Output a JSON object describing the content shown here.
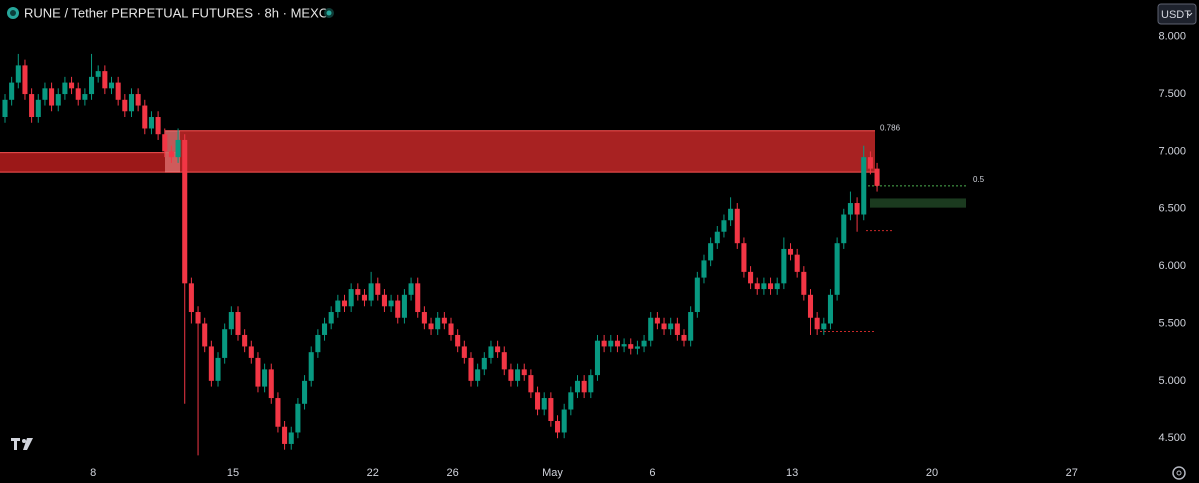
{
  "chart_data": {
    "type": "candlestick",
    "title": "RUNE / Tether PERPETUAL FUTURES · 8h · MEXC",
    "currency": "USDT",
    "up_color": "#089981",
    "down_color": "#f23645",
    "grid": false,
    "xlim": [
      -0.75,
      172
    ],
    "ylim": [
      4.31,
      8.32
    ],
    "yticks": [
      {
        "value": 8,
        "label": "8.000"
      },
      {
        "value": 7.5,
        "label": "7.500"
      },
      {
        "value": 7,
        "label": "7.000"
      },
      {
        "value": 6.5,
        "label": "6.500"
      },
      {
        "value": 6,
        "label": "6.000"
      },
      {
        "value": 5.5,
        "label": "5.500"
      },
      {
        "value": 5,
        "label": "5.000"
      },
      {
        "value": 4.5,
        "label": "4.500"
      }
    ],
    "xticks": [
      {
        "value": 13.25,
        "label": "8"
      },
      {
        "value": 34.25,
        "label": "15"
      },
      {
        "value": 55.25,
        "label": "22"
      },
      {
        "value": 67.25,
        "label": "26"
      },
      {
        "value": 82.25,
        "label": "May"
      },
      {
        "value": 97.25,
        "label": "6"
      },
      {
        "value": 118.25,
        "label": "13"
      },
      {
        "value": 139.25,
        "label": "20"
      },
      {
        "value": 160.25,
        "label": "27"
      }
    ],
    "open": [
      7.3,
      7.45,
      7.6,
      7.75,
      7.5,
      7.3,
      7.45,
      7.55,
      7.4,
      7.5,
      7.6,
      7.55,
      7.45,
      7.5,
      7.65,
      7.7,
      7.55,
      7.6,
      7.45,
      7.35,
      7.5,
      7.4,
      7.2,
      7.3,
      7.15,
      7.0,
      6.95,
      7.1,
      5.85,
      5.6,
      5.5,
      5.3,
      5.0,
      5.2,
      5.45,
      5.6,
      5.4,
      5.3,
      5.2,
      4.95,
      5.1,
      4.85,
      4.6,
      4.45,
      4.55,
      4.8,
      5.0,
      5.25,
      5.4,
      5.5,
      5.6,
      5.7,
      5.65,
      5.8,
      5.75,
      5.7,
      5.85,
      5.75,
      5.65,
      5.7,
      5.55,
      5.75,
      5.85,
      5.6,
      5.5,
      5.45,
      5.55,
      5.5,
      5.4,
      5.3,
      5.2,
      5.0,
      5.1,
      5.2,
      5.3,
      5.25,
      5.1,
      5.0,
      5.1,
      5.05,
      4.9,
      4.75,
      4.85,
      4.65,
      4.55,
      4.75,
      4.9,
      5.0,
      4.9,
      5.05,
      5.35,
      5.3,
      5.35,
      5.3,
      5.32,
      5.28,
      5.3,
      5.35,
      5.55,
      5.5,
      5.45,
      5.5,
      5.4,
      5.35,
      5.6,
      5.9,
      6.05,
      6.2,
      6.3,
      6.4,
      6.5,
      6.2,
      5.95,
      5.85,
      5.8,
      5.85,
      5.8,
      5.85,
      6.15,
      6.1,
      5.95,
      5.75,
      5.55,
      5.45,
      5.5,
      5.75,
      6.2,
      6.45,
      6.55,
      6.45,
      6.95,
      6.85
    ],
    "high": [
      7.5,
      7.65,
      7.85,
      7.8,
      7.55,
      7.5,
      7.6,
      7.6,
      7.55,
      7.65,
      7.65,
      7.6,
      7.55,
      7.85,
      7.75,
      7.75,
      7.65,
      7.65,
      7.5,
      7.55,
      7.55,
      7.45,
      7.35,
      7.35,
      7.2,
      7.05,
      7.2,
      7.15,
      5.9,
      5.65,
      5.55,
      5.35,
      5.25,
      5.5,
      5.65,
      5.65,
      5.45,
      5.35,
      5.25,
      5.15,
      5.15,
      4.9,
      4.65,
      4.6,
      4.85,
      5.05,
      5.3,
      5.45,
      5.55,
      5.65,
      5.75,
      5.75,
      5.85,
      5.85,
      5.8,
      5.95,
      5.9,
      5.8,
      5.75,
      5.75,
      5.8,
      5.9,
      5.9,
      5.65,
      5.55,
      5.6,
      5.6,
      5.55,
      5.45,
      5.35,
      5.25,
      5.15,
      5.25,
      5.35,
      5.35,
      5.3,
      5.15,
      5.15,
      5.15,
      5.1,
      4.95,
      4.9,
      4.9,
      4.7,
      4.8,
      4.95,
      5.05,
      5.05,
      5.1,
      5.4,
      5.4,
      5.4,
      5.4,
      5.37,
      5.37,
      5.35,
      5.4,
      5.6,
      5.6,
      5.55,
      5.55,
      5.55,
      5.45,
      5.65,
      5.95,
      6.1,
      6.25,
      6.35,
      6.45,
      6.6,
      6.55,
      6.25,
      6.0,
      5.9,
      5.9,
      5.9,
      5.9,
      6.25,
      6.2,
      6.15,
      6.0,
      5.8,
      5.6,
      5.55,
      5.8,
      6.25,
      6.5,
      6.65,
      6.6,
      7.05,
      7.0,
      6.9
    ],
    "low": [
      7.25,
      7.4,
      7.55,
      7.45,
      7.25,
      7.25,
      7.4,
      7.35,
      7.35,
      7.45,
      7.5,
      7.4,
      7.4,
      7.45,
      7.6,
      7.5,
      7.5,
      7.4,
      7.3,
      7.3,
      7.35,
      7.15,
      7.15,
      7.1,
      6.95,
      6.9,
      6.9,
      4.8,
      5.5,
      4.35,
      5.25,
      4.95,
      4.95,
      5.15,
      5.4,
      5.35,
      5.25,
      5.15,
      4.9,
      4.9,
      4.8,
      4.55,
      4.4,
      4.4,
      4.5,
      4.75,
      4.95,
      5.2,
      5.35,
      5.45,
      5.55,
      5.6,
      5.6,
      5.7,
      5.65,
      5.65,
      5.7,
      5.6,
      5.6,
      5.5,
      5.5,
      5.7,
      5.55,
      5.45,
      5.4,
      5.4,
      5.45,
      5.35,
      5.25,
      5.15,
      4.95,
      4.95,
      5.05,
      5.15,
      5.2,
      5.05,
      4.95,
      4.95,
      5.0,
      4.85,
      4.7,
      4.7,
      4.6,
      4.5,
      4.5,
      4.7,
      4.85,
      4.85,
      4.85,
      5.0,
      5.25,
      5.25,
      5.25,
      5.25,
      5.23,
      5.23,
      5.25,
      5.3,
      5.45,
      5.4,
      5.4,
      5.35,
      5.3,
      5.3,
      5.55,
      5.85,
      6.0,
      6.15,
      6.25,
      6.35,
      6.15,
      5.9,
      5.8,
      5.75,
      5.75,
      5.75,
      5.75,
      5.8,
      6.05,
      5.9,
      5.7,
      5.4,
      5.4,
      5.4,
      5.45,
      5.7,
      6.15,
      6.4,
      6.3,
      6.4,
      6.8,
      6.65
    ],
    "close": [
      7.45,
      7.6,
      7.75,
      7.5,
      7.3,
      7.45,
      7.55,
      7.4,
      7.5,
      7.6,
      7.55,
      7.45,
      7.5,
      7.65,
      7.7,
      7.55,
      7.6,
      7.45,
      7.35,
      7.5,
      7.4,
      7.2,
      7.3,
      7.15,
      7.0,
      6.95,
      7.1,
      5.85,
      5.6,
      5.5,
      5.3,
      5.0,
      5.2,
      5.45,
      5.6,
      5.4,
      5.3,
      5.2,
      4.95,
      5.1,
      4.85,
      4.6,
      4.45,
      4.55,
      4.8,
      5.0,
      5.25,
      5.4,
      5.5,
      5.6,
      5.7,
      5.65,
      5.8,
      5.75,
      5.7,
      5.85,
      5.75,
      5.65,
      5.7,
      5.55,
      5.75,
      5.85,
      5.6,
      5.5,
      5.45,
      5.55,
      5.5,
      5.4,
      5.3,
      5.2,
      5.0,
      5.1,
      5.2,
      5.3,
      5.25,
      5.1,
      5.0,
      5.1,
      5.05,
      4.9,
      4.75,
      4.85,
      4.65,
      4.55,
      4.75,
      4.9,
      5.0,
      4.9,
      5.05,
      5.35,
      5.3,
      5.35,
      5.3,
      5.32,
      5.28,
      5.3,
      5.35,
      5.55,
      5.5,
      5.45,
      5.5,
      5.4,
      5.35,
      5.6,
      5.9,
      6.05,
      6.2,
      6.3,
      6.4,
      6.5,
      6.2,
      5.95,
      5.85,
      5.8,
      5.85,
      5.8,
      5.85,
      6.15,
      6.1,
      5.95,
      5.75,
      5.55,
      5.45,
      5.5,
      5.75,
      6.2,
      6.45,
      6.55,
      6.45,
      6.95,
      6.85,
      6.7
    ],
    "zones": [
      {
        "low": 6.82,
        "high": 6.99,
        "color": "#b71c1c"
      },
      {
        "low": 6.82,
        "high": 7.18,
        "color": "#c62828"
      },
      {
        "low": 6.51,
        "high": 6.59,
        "color": "#1b3a1f"
      }
    ],
    "levels": [
      {
        "value": 7.15,
        "label": "0.786",
        "color": "#b2b5be"
      },
      {
        "value": 6.7,
        "label": "0.5",
        "color": "#4caf50"
      },
      {
        "value": 6.31,
        "color": "#c62828"
      },
      {
        "value": 5.43,
        "color": "#c62828"
      }
    ]
  }
}
